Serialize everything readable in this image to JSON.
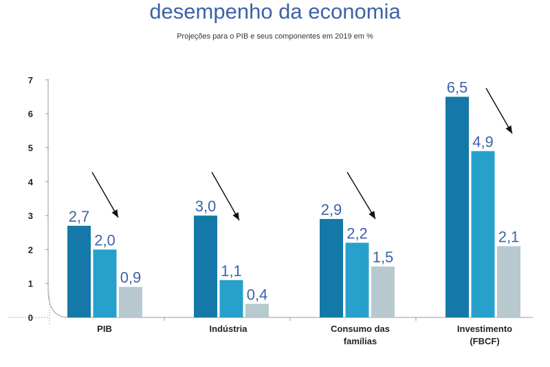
{
  "chart_data": {
    "type": "bar",
    "title": "desempenho da economia",
    "subtitle": "Projeções para o PIB e seus componentes em 2019 em %",
    "categories": [
      [
        "PIB"
      ],
      [
        "Indústria"
      ],
      [
        "Consumo das",
        "famílias"
      ],
      [
        "Investimento",
        "(FBCF)"
      ]
    ],
    "series": [
      {
        "values": [
          2.7,
          3.0,
          2.9,
          6.5
        ],
        "labels": [
          "2,7",
          "3,0",
          "2,9",
          "6,5"
        ],
        "color": "#1479a8"
      },
      {
        "values": [
          2.0,
          1.1,
          2.2,
          4.9
        ],
        "labels": [
          "2,0",
          "1,1",
          "2,2",
          "4,9"
        ],
        "color": "#27a0cc"
      },
      {
        "values": [
          0.9,
          0.4,
          1.5,
          2.1
        ],
        "labels": [
          "0,9",
          "0,4",
          "1,5",
          "2,1"
        ],
        "color": "#b8c9cf"
      }
    ],
    "yticks": [
      "0",
      "1",
      "2",
      "3",
      "4",
      "5",
      "6",
      "7"
    ],
    "ylim": [
      0,
      7
    ],
    "grid": false,
    "annotations": "downward arrow over each category indicating decline",
    "label_color": "#3d63a8"
  }
}
